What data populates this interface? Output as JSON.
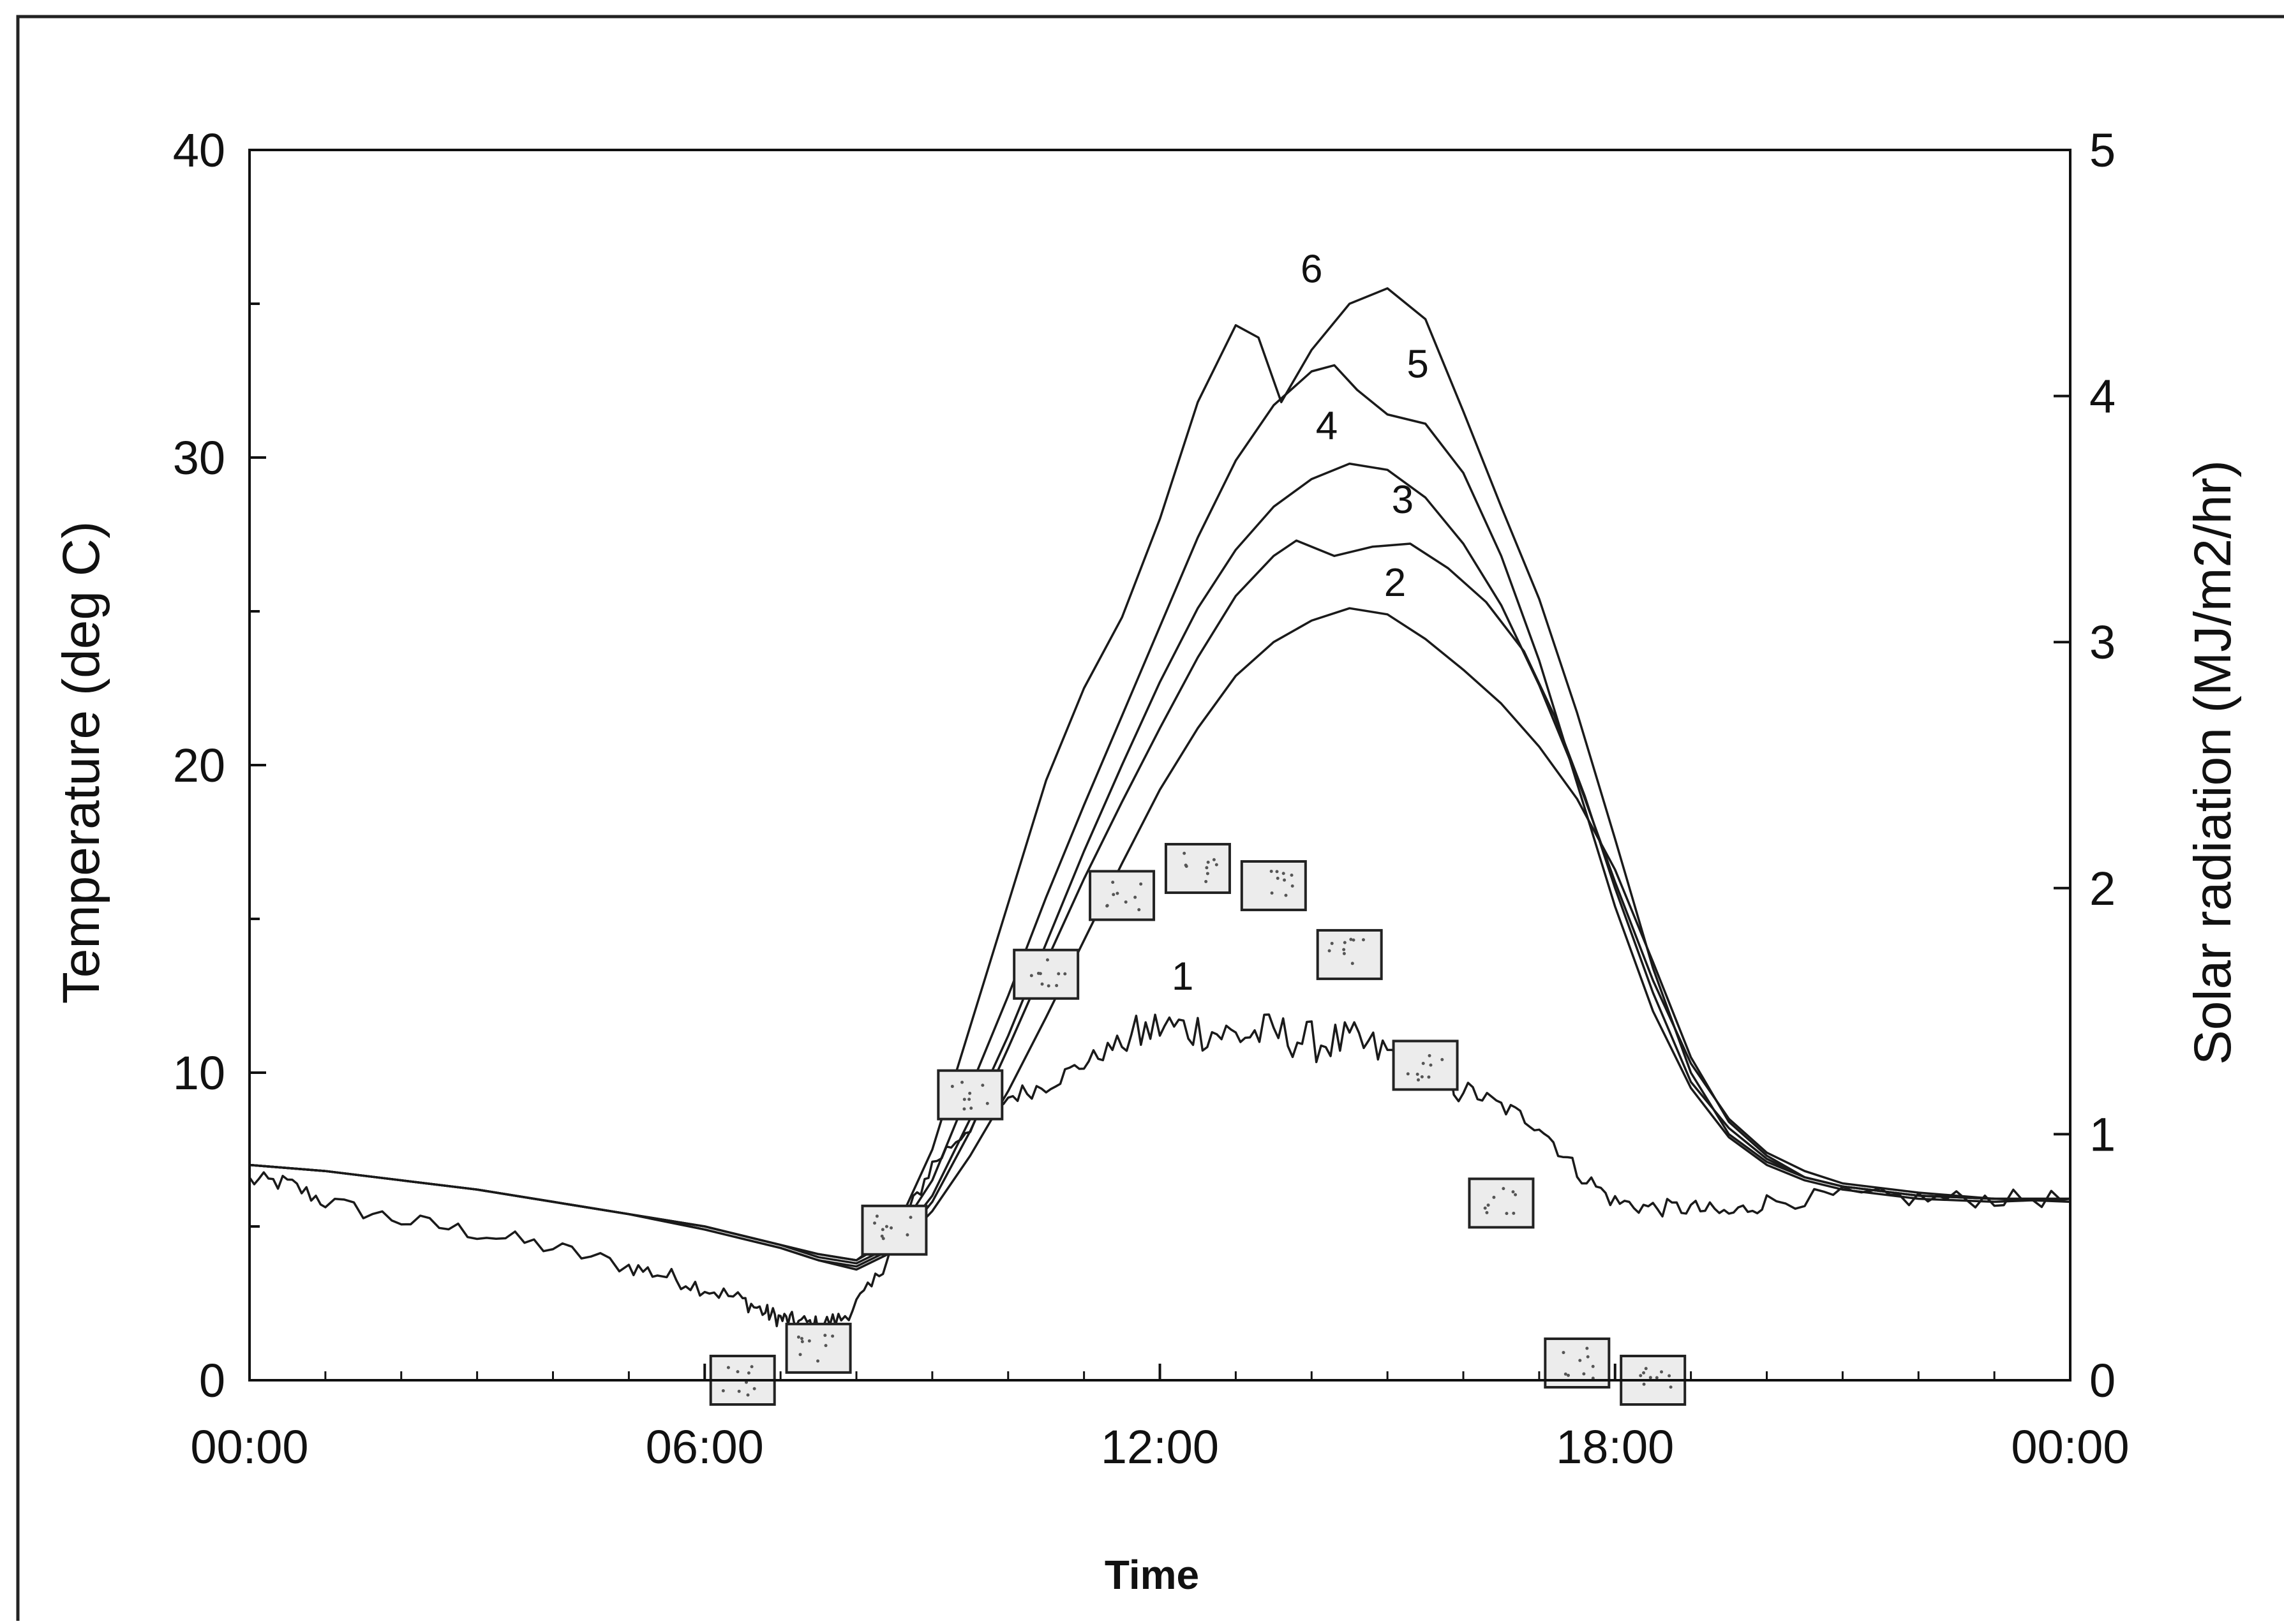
{
  "chart_data": {
    "type": "line",
    "xlabel": "Time",
    "ylabel": "Temperature (deg C)",
    "y2label": "Solar radiation (MJ/m2/hr)",
    "xlim": [
      0,
      24
    ],
    "ylim": [
      0,
      40
    ],
    "y2lim": [
      0,
      5
    ],
    "xticks": [
      {
        "value": 0,
        "label": "00:00"
      },
      {
        "value": 6,
        "label": "06:00"
      },
      {
        "value": 12,
        "label": "12:00"
      },
      {
        "value": 18,
        "label": "18:00"
      },
      {
        "value": 24,
        "label": "00:00"
      }
    ],
    "yticks": [
      {
        "value": 0,
        "label": "0"
      },
      {
        "value": 10,
        "label": "10"
      },
      {
        "value": 20,
        "label": "20"
      },
      {
        "value": 30,
        "label": "30"
      },
      {
        "value": 40,
        "label": "40"
      }
    ],
    "y2ticks": [
      {
        "value": 0,
        "label": "0"
      },
      {
        "value": 1,
        "label": "1"
      },
      {
        "value": 2,
        "label": "2"
      },
      {
        "value": 3,
        "label": "3"
      },
      {
        "value": 4,
        "label": "4"
      },
      {
        "value": 5,
        "label": "5"
      }
    ],
    "grid": false,
    "line_color": "#1a1a1a",
    "series": [
      {
        "name": "1",
        "label_at": [
          12.3,
          12.7
        ],
        "noisy": true,
        "x": [
          0,
          0.5,
          1,
          2,
          3,
          4,
          5,
          5.5,
          6,
          6.5,
          6.8,
          7,
          7.2,
          7.5,
          7.8,
          8.2,
          8.6,
          9,
          9.5,
          10,
          10.5,
          11,
          11.5,
          12,
          12.5,
          13,
          13.5,
          14,
          14.5,
          15,
          15.5,
          16,
          16.5,
          17,
          17.5,
          18,
          18.5,
          19,
          19.5,
          20,
          21,
          22,
          23,
          24
        ],
        "y": [
          6.5,
          6.4,
          5.8,
          5.2,
          4.8,
          4.3,
          3.7,
          3.4,
          3.0,
          2.6,
          2.2,
          2.0,
          1.9,
          1.8,
          2.0,
          3.0,
          5.0,
          7.0,
          8.3,
          9.2,
          9.6,
          10.3,
          11.0,
          11.5,
          11.4,
          11.2,
          11.3,
          11.0,
          11.0,
          10.6,
          10.3,
          9.5,
          8.9,
          8.3,
          6.8,
          5.8,
          5.6,
          5.6,
          5.4,
          5.8,
          6.0,
          5.9,
          5.9,
          5.9
        ]
      },
      {
        "name": "2",
        "label_at": [
          15.1,
          25.5
        ],
        "x": [
          0,
          1,
          2,
          3,
          4,
          5,
          6,
          6.5,
          7,
          7.5,
          8,
          8.5,
          9,
          9.5,
          10,
          10.5,
          11,
          11.5,
          12,
          12.5,
          13,
          13.5,
          14,
          14.5,
          15,
          15.5,
          16,
          16.5,
          17,
          17.5,
          18,
          18.5,
          19,
          19.5,
          20,
          20.5,
          21,
          22,
          23,
          24
        ],
        "y": [
          7.0,
          6.8,
          6.5,
          6.2,
          5.8,
          5.4,
          4.9,
          4.6,
          4.3,
          3.9,
          3.6,
          4.2,
          5.5,
          7.3,
          9.4,
          11.8,
          14.3,
          16.8,
          19.2,
          21.2,
          22.9,
          24.0,
          24.7,
          25.1,
          24.9,
          24.1,
          23.1,
          22.0,
          20.6,
          18.9,
          16.6,
          13.6,
          10.5,
          8.4,
          7.3,
          6.6,
          6.3,
          6.0,
          5.9,
          5.9
        ]
      },
      {
        "name": "3",
        "label_at": [
          15.2,
          28.2
        ],
        "x": [
          0,
          1,
          2,
          3,
          4,
          5,
          6,
          6.5,
          7,
          7.5,
          8,
          8.5,
          9,
          9.5,
          10,
          10.5,
          11,
          11.5,
          12,
          12.5,
          13,
          13.5,
          13.8,
          14.3,
          14.8,
          15.3,
          15.8,
          16.3,
          16.8,
          17.2,
          17.6,
          18,
          18.5,
          19,
          19.5,
          20,
          20.5,
          21,
          22,
          23,
          24
        ],
        "y": [
          7.0,
          6.8,
          6.5,
          6.2,
          5.8,
          5.4,
          4.9,
          4.6,
          4.3,
          3.9,
          3.7,
          4.3,
          5.8,
          8.1,
          10.8,
          13.6,
          16.3,
          18.8,
          21.2,
          23.5,
          25.5,
          26.8,
          27.3,
          26.8,
          27.1,
          27.2,
          26.4,
          25.3,
          23.7,
          21.6,
          19.0,
          16.0,
          12.6,
          9.7,
          8.2,
          7.2,
          6.6,
          6.3,
          6.0,
          5.9,
          5.9
        ]
      },
      {
        "name": "4",
        "label_at": [
          14.2,
          30.6
        ],
        "x": [
          0,
          1,
          2,
          3,
          4,
          5,
          6,
          6.5,
          7,
          7.5,
          8,
          8.5,
          9,
          9.5,
          10,
          10.5,
          11,
          11.5,
          12,
          12.5,
          13,
          13.5,
          14,
          14.5,
          15,
          15.5,
          16,
          16.5,
          17,
          17.5,
          18,
          18.5,
          19,
          19.5,
          20,
          20.5,
          21,
          22,
          23,
          24
        ],
        "y": [
          7.0,
          6.8,
          6.5,
          6.2,
          5.8,
          5.4,
          5.0,
          4.7,
          4.4,
          4.0,
          3.8,
          4.4,
          6.0,
          8.5,
          11.2,
          14.2,
          17.2,
          20.0,
          22.7,
          25.1,
          27.0,
          28.4,
          29.3,
          29.8,
          29.6,
          28.7,
          27.2,
          25.2,
          22.6,
          19.6,
          16.2,
          13.0,
          10.3,
          8.5,
          7.4,
          6.8,
          6.4,
          6.1,
          5.9,
          5.9
        ]
      },
      {
        "name": "5",
        "label_at": [
          15.4,
          32.6
        ],
        "x": [
          0,
          1,
          2,
          3,
          4,
          5,
          6,
          6.5,
          7,
          7.5,
          8,
          8.5,
          9,
          9.5,
          10,
          10.5,
          11,
          11.5,
          12,
          12.5,
          13,
          13.5,
          14,
          14.3,
          14.6,
          15,
          15.5,
          16,
          16.5,
          17,
          17.5,
          18,
          18.5,
          19,
          19.5,
          20,
          20.5,
          21,
          22,
          23,
          24
        ],
        "y": [
          7.0,
          6.8,
          6.5,
          6.2,
          5.8,
          5.4,
          5.0,
          4.7,
          4.4,
          4.1,
          3.9,
          4.6,
          6.5,
          9.5,
          12.5,
          15.7,
          18.7,
          21.6,
          24.5,
          27.4,
          29.9,
          31.7,
          32.8,
          33.0,
          32.2,
          31.4,
          31.1,
          29.5,
          26.8,
          23.4,
          19.4,
          15.4,
          12.0,
          9.5,
          7.9,
          7.0,
          6.5,
          6.2,
          5.9,
          5.8,
          5.9
        ]
      },
      {
        "name": "6",
        "label_at": [
          14.0,
          35.7
        ],
        "x": [
          0,
          1,
          2,
          3,
          4,
          5,
          6,
          6.5,
          7,
          7.5,
          8,
          8.5,
          9,
          9.5,
          10,
          10.5,
          11,
          11.5,
          12,
          12.5,
          12.8,
          13,
          13.3,
          13.6,
          14,
          14.5,
          15,
          15.5,
          16,
          16.5,
          17,
          17.5,
          18,
          18.5,
          19,
          19.5,
          20,
          20.5,
          21,
          22,
          23,
          24
        ],
        "y": [
          7.0,
          6.8,
          6.5,
          6.2,
          5.8,
          5.4,
          5.0,
          4.7,
          4.4,
          4.1,
          3.9,
          4.8,
          7.5,
          11.5,
          15.5,
          19.5,
          22.5,
          24.8,
          28.0,
          31.8,
          33.3,
          34.3,
          33.9,
          31.8,
          33.5,
          35.0,
          35.5,
          34.5,
          31.5,
          28.4,
          25.4,
          21.7,
          17.6,
          13.4,
          10.0,
          8.0,
          7.1,
          6.6,
          6.3,
          6.0,
          5.9,
          5.8
        ]
      },
      {
        "name": "Solar radiation",
        "axis": "right",
        "style": "box-markers",
        "x": [
          6.5,
          7.5,
          8.5,
          9.5,
          10.5,
          11.5,
          12.5,
          13.5,
          14.5,
          15.5,
          16.5,
          17.5,
          18.5
        ],
        "y": [
          0.0,
          0.13,
          0.61,
          1.16,
          1.65,
          1.97,
          2.08,
          2.01,
          1.73,
          1.28,
          0.72,
          0.07,
          0.0
        ]
      }
    ]
  }
}
